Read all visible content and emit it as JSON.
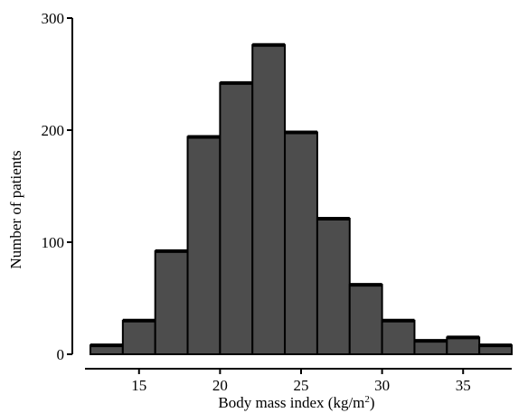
{
  "chart_data": {
    "type": "bar",
    "title": "",
    "xlabel": "Body mass index (kg/m²)",
    "xlabel_text": "Body mass index (kg/m",
    "xlabel_sup": "2",
    "xlabel_tail": ")",
    "ylabel": "Number of patients",
    "xlim": [
      12,
      38
    ],
    "ylim": [
      0,
      300
    ],
    "xticks": [
      15,
      20,
      25,
      30,
      35
    ],
    "yticks": [
      0,
      100,
      200,
      300
    ],
    "bin_width": 2,
    "bins": [
      {
        "start": 12,
        "end": 14,
        "value": 8
      },
      {
        "start": 14,
        "end": 16,
        "value": 30
      },
      {
        "start": 16,
        "end": 18,
        "value": 92
      },
      {
        "start": 18,
        "end": 20,
        "value": 194
      },
      {
        "start": 20,
        "end": 22,
        "value": 242
      },
      {
        "start": 22,
        "end": 24,
        "value": 276
      },
      {
        "start": 24,
        "end": 26,
        "value": 198
      },
      {
        "start": 26,
        "end": 28,
        "value": 121
      },
      {
        "start": 28,
        "end": 30,
        "value": 62
      },
      {
        "start": 30,
        "end": 32,
        "value": 30
      },
      {
        "start": 32,
        "end": 34,
        "value": 12
      },
      {
        "start": 34,
        "end": 36,
        "value": 15
      },
      {
        "start": 36,
        "end": 38,
        "value": 8
      }
    ],
    "grid": false,
    "legend": "none",
    "bar_color": "#4d4d4d",
    "edge_color": "#000000"
  }
}
